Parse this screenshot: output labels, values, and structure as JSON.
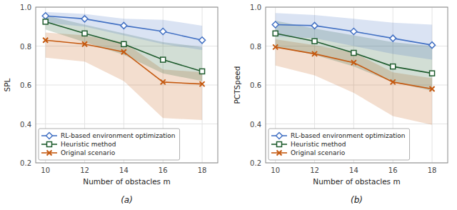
{
  "chart_data": [
    {
      "type": "line",
      "subtitle": "(a)",
      "xlabel": "Number of obstacles m",
      "ylabel": "SPL",
      "x": [
        10,
        12,
        14,
        16,
        18
      ],
      "xlim": [
        9.5,
        18.8
      ],
      "xticks": [
        10,
        12,
        14,
        16,
        18
      ],
      "ylim": [
        0.2,
        1.0
      ],
      "yticks": [
        0.2,
        0.4,
        0.6,
        0.8,
        {
          "value": 1.0,
          "label": "1.0"
        }
      ],
      "grid": true,
      "legend": "lower left",
      "series": [
        {
          "name": "RL-based environment optimization",
          "color": "#4472C4",
          "marker": "diamond",
          "values": [
            0.955,
            0.94,
            0.905,
            0.875,
            0.83
          ],
          "upper": [
            0.975,
            0.965,
            0.94,
            0.935,
            0.905
          ],
          "lower": [
            0.92,
            0.9,
            0.855,
            0.81,
            0.78
          ]
        },
        {
          "name": "Heuristic method",
          "color": "#1F5C2E",
          "marker": "square",
          "values": [
            0.925,
            0.865,
            0.81,
            0.73,
            0.67
          ],
          "upper": [
            0.958,
            0.91,
            0.865,
            0.82,
            0.795
          ],
          "lower": [
            0.885,
            0.82,
            0.755,
            0.66,
            0.62
          ]
        },
        {
          "name": "Original scenario",
          "color": "#C55A11",
          "marker": "x",
          "values": [
            0.83,
            0.81,
            0.77,
            0.615,
            0.605
          ],
          "upper": [
            0.87,
            0.855,
            0.82,
            0.68,
            0.665
          ],
          "lower": [
            0.74,
            0.72,
            0.62,
            0.43,
            0.42
          ]
        }
      ]
    },
    {
      "type": "line",
      "subtitle": "(b)",
      "xlabel": "Number of obstacles m",
      "ylabel": "PCTSpeed",
      "x": [
        10,
        12,
        14,
        16,
        18
      ],
      "xlim": [
        9.5,
        18.8
      ],
      "xticks": [
        10,
        12,
        14,
        16,
        18
      ],
      "ylim": [
        0.2,
        1.0
      ],
      "yticks": [
        0.2,
        0.4,
        0.6,
        0.8,
        {
          "value": 1.0,
          "label": "1.0"
        }
      ],
      "grid": true,
      "legend": "lower left",
      "series": [
        {
          "name": "RL-based environment optimization",
          "color": "#4472C4",
          "marker": "diamond",
          "values": [
            0.91,
            0.905,
            0.875,
            0.84,
            0.805
          ],
          "upper": [
            0.97,
            0.96,
            0.94,
            0.92,
            0.91
          ],
          "lower": [
            0.85,
            0.84,
            0.8,
            0.76,
            0.73
          ]
        },
        {
          "name": "Heuristic method",
          "color": "#1F5C2E",
          "marker": "square",
          "values": [
            0.865,
            0.825,
            0.765,
            0.695,
            0.66
          ],
          "upper": [
            0.93,
            0.89,
            0.855,
            0.82,
            0.8
          ],
          "lower": [
            0.795,
            0.755,
            0.695,
            0.615,
            0.57
          ]
        },
        {
          "name": "Original scenario",
          "color": "#C55A11",
          "marker": "x",
          "values": [
            0.795,
            0.76,
            0.715,
            0.615,
            0.58
          ],
          "upper": [
            0.835,
            0.805,
            0.768,
            0.665,
            0.635
          ],
          "lower": [
            0.7,
            0.65,
            0.56,
            0.44,
            0.395
          ]
        }
      ]
    }
  ]
}
